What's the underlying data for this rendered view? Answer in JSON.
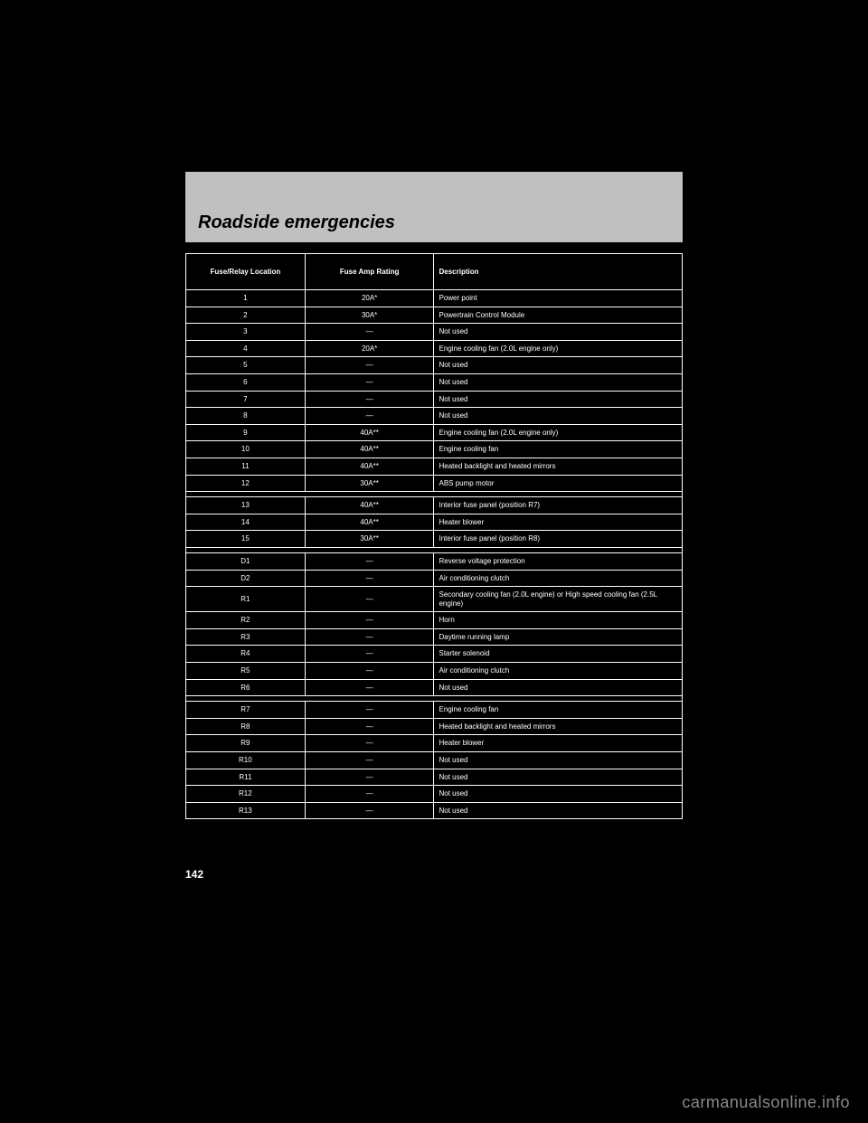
{
  "header": {
    "title": "Roadside emergencies"
  },
  "table": {
    "columns": [
      {
        "label": "Fuse/Relay\nLocation",
        "class": "col-a"
      },
      {
        "label": "Fuse Amp\nRating",
        "class": "col-b"
      },
      {
        "label": "Description",
        "class": "col-c"
      }
    ],
    "groups": [
      {
        "rows": [
          [
            "1",
            "20A*",
            "Power point"
          ],
          [
            "2",
            "30A*",
            "Powertrain Control Module"
          ],
          [
            "3",
            "—",
            "Not used"
          ],
          [
            "4",
            "20A*",
            "Engine cooling fan (2.0L engine only)"
          ],
          [
            "5",
            "—",
            "Not used"
          ],
          [
            "6",
            "—",
            "Not used"
          ],
          [
            "7",
            "—",
            "Not used"
          ],
          [
            "8",
            "—",
            "Not used"
          ],
          [
            "9",
            "40A**",
            "Engine cooling fan (2.0L engine only)"
          ],
          [
            "10",
            "40A**",
            "Engine cooling fan"
          ],
          [
            "11",
            "40A**",
            "Heated backlight and heated mirrors"
          ],
          [
            "12",
            "30A**",
            "ABS pump motor"
          ]
        ]
      },
      {
        "rows": [
          [
            "13",
            "40A**",
            "Interior fuse panel (position R7)"
          ],
          [
            "14",
            "40A**",
            "Heater blower"
          ],
          [
            "15",
            "30A**",
            "Interior fuse panel (position R8)"
          ]
        ]
      },
      {
        "rows": [
          [
            "D1",
            "—",
            "Reverse voltage protection"
          ],
          [
            "D2",
            "—",
            "Air conditioning clutch"
          ],
          [
            "R1",
            "—",
            "Secondary cooling fan (2.0L engine) or High speed cooling fan (2.5L engine)"
          ],
          [
            "R2",
            "—",
            "Horn"
          ],
          [
            "R3",
            "—",
            "Daytime running lamp"
          ],
          [
            "R4",
            "—",
            "Starter solenoid"
          ],
          [
            "R5",
            "—",
            "Air conditioning clutch"
          ],
          [
            "R6",
            "—",
            "Not used"
          ]
        ]
      },
      {
        "rows": [
          [
            "R7",
            "—",
            "Engine cooling fan"
          ],
          [
            "R8",
            "—",
            "Heated backlight and heated mirrors"
          ],
          [
            "R9",
            "—",
            "Heater blower"
          ],
          [
            "R10",
            "—",
            "Not used"
          ],
          [
            "R11",
            "—",
            "Not used"
          ],
          [
            "R12",
            "—",
            "Not used"
          ],
          [
            "R13",
            "—",
            "Not used"
          ]
        ]
      }
    ]
  },
  "footer": {
    "page_number": "142",
    "watermark": "carmanualsonline.info"
  }
}
